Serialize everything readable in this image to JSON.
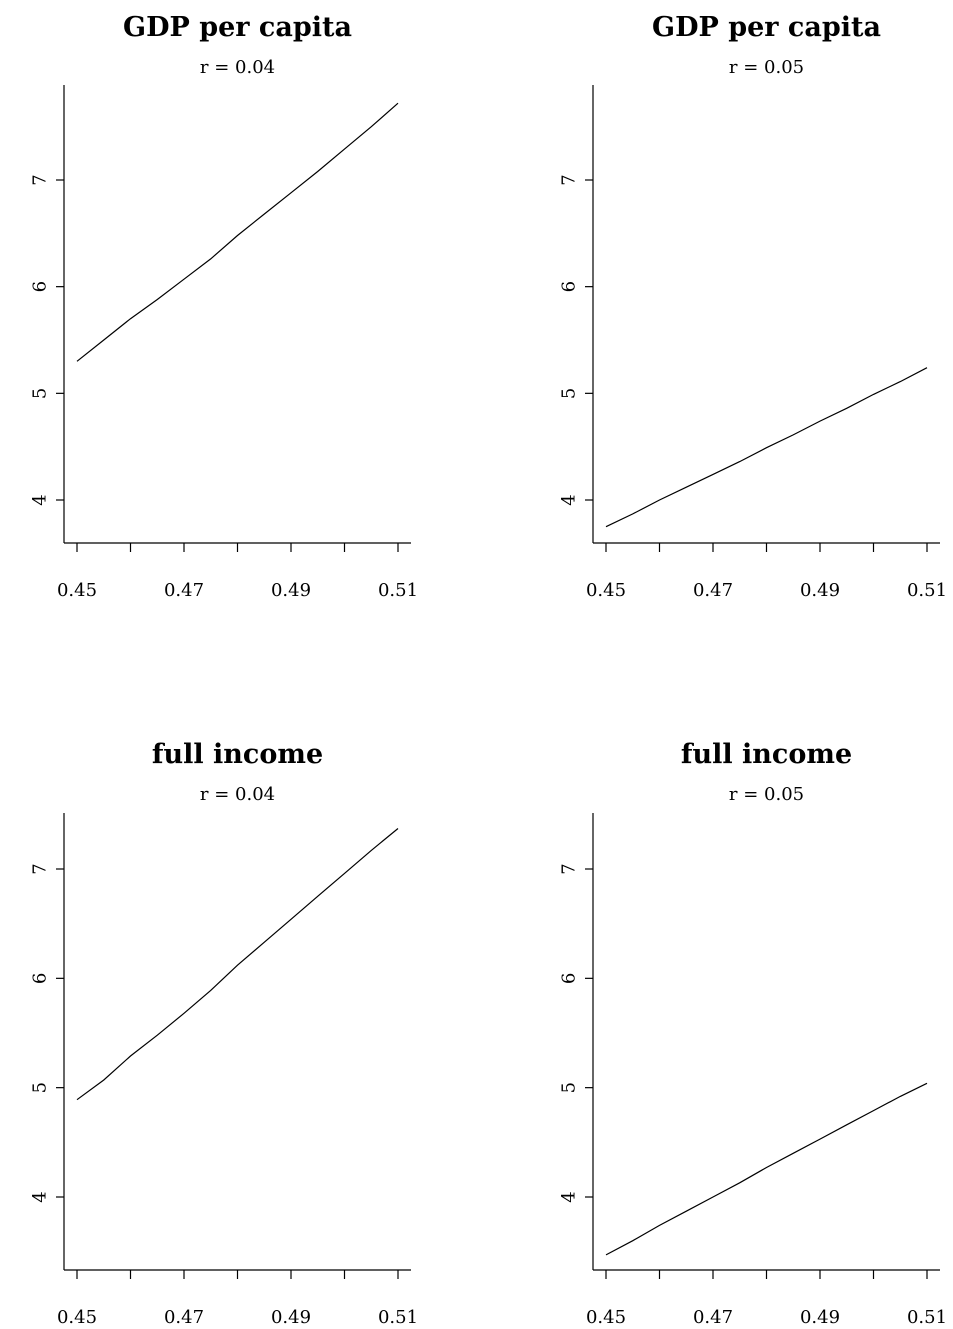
{
  "chart_data": [
    {
      "type": "line",
      "title": "GDP per capita",
      "subtitle": "r = 0.04",
      "xlim": [
        0.45,
        0.51
      ],
      "ylim": [
        3.6,
        7.9
      ],
      "x_ticks": [
        0.45,
        0.46,
        0.47,
        0.48,
        0.49,
        0.5,
        0.51
      ],
      "x_tick_labels": [
        "0.45",
        "",
        "0.47",
        "",
        "0.49",
        "",
        "0.51"
      ],
      "y_ticks": [
        4,
        5,
        6,
        7
      ],
      "y_tick_labels": [
        "4",
        "5",
        "6",
        "7"
      ],
      "series": [
        {
          "x": [
            0.45,
            0.455,
            0.46,
            0.465,
            0.47,
            0.475,
            0.48,
            0.485,
            0.49,
            0.495,
            0.5,
            0.505,
            0.51
          ],
          "values": [
            5.3,
            5.5,
            5.7,
            5.88,
            6.07,
            6.26,
            6.48,
            6.68,
            6.88,
            7.08,
            7.29,
            7.5,
            7.72
          ]
        }
      ]
    },
    {
      "type": "line",
      "title": "GDP per capita",
      "subtitle": "r = 0.05",
      "xlim": [
        0.45,
        0.51
      ],
      "ylim": [
        3.6,
        7.9
      ],
      "x_ticks": [
        0.45,
        0.46,
        0.47,
        0.48,
        0.49,
        0.5,
        0.51
      ],
      "x_tick_labels": [
        "0.45",
        "",
        "0.47",
        "",
        "0.49",
        "",
        "0.51"
      ],
      "y_ticks": [
        4,
        5,
        6,
        7
      ],
      "y_tick_labels": [
        "4",
        "5",
        "6",
        "7"
      ],
      "series": [
        {
          "x": [
            0.45,
            0.455,
            0.46,
            0.465,
            0.47,
            0.475,
            0.48,
            0.485,
            0.49,
            0.495,
            0.5,
            0.505,
            0.51
          ],
          "values": [
            3.75,
            3.87,
            4.0,
            4.12,
            4.24,
            4.36,
            4.49,
            4.61,
            4.74,
            4.86,
            4.99,
            5.11,
            5.24
          ]
        }
      ]
    },
    {
      "type": "line",
      "title": "full income",
      "subtitle": "r = 0.04",
      "xlim": [
        0.45,
        0.51
      ],
      "ylim": [
        3.3,
        7.5
      ],
      "x_ticks": [
        0.45,
        0.46,
        0.47,
        0.48,
        0.49,
        0.5,
        0.51
      ],
      "x_tick_labels": [
        "0.45",
        "",
        "0.47",
        "",
        "0.49",
        "",
        "0.51"
      ],
      "y_ticks": [
        4,
        5,
        6,
        7
      ],
      "y_tick_labels": [
        "4",
        "5",
        "6",
        "7"
      ],
      "series": [
        {
          "x": [
            0.45,
            0.455,
            0.46,
            0.465,
            0.47,
            0.475,
            0.48,
            0.485,
            0.49,
            0.495,
            0.5,
            0.505,
            0.51
          ],
          "values": [
            4.89,
            5.07,
            5.29,
            5.48,
            5.68,
            5.89,
            6.12,
            6.33,
            6.54,
            6.75,
            6.96,
            7.17,
            7.37
          ]
        }
      ]
    },
    {
      "type": "line",
      "title": "full income",
      "subtitle": "r = 0.05",
      "xlim": [
        0.45,
        0.51
      ],
      "ylim": [
        3.3,
        7.5
      ],
      "x_ticks": [
        0.45,
        0.46,
        0.47,
        0.48,
        0.49,
        0.5,
        0.51
      ],
      "x_tick_labels": [
        "0.45",
        "",
        "0.47",
        "",
        "0.49",
        "",
        "0.51"
      ],
      "y_ticks": [
        4,
        5,
        6,
        7
      ],
      "y_tick_labels": [
        "4",
        "5",
        "6",
        "7"
      ],
      "series": [
        {
          "x": [
            0.45,
            0.455,
            0.46,
            0.465,
            0.47,
            0.475,
            0.48,
            0.485,
            0.49,
            0.495,
            0.5,
            0.505,
            0.51
          ],
          "values": [
            3.47,
            3.6,
            3.74,
            3.87,
            4.0,
            4.13,
            4.27,
            4.4,
            4.53,
            4.66,
            4.79,
            4.92,
            5.04
          ]
        }
      ]
    }
  ]
}
